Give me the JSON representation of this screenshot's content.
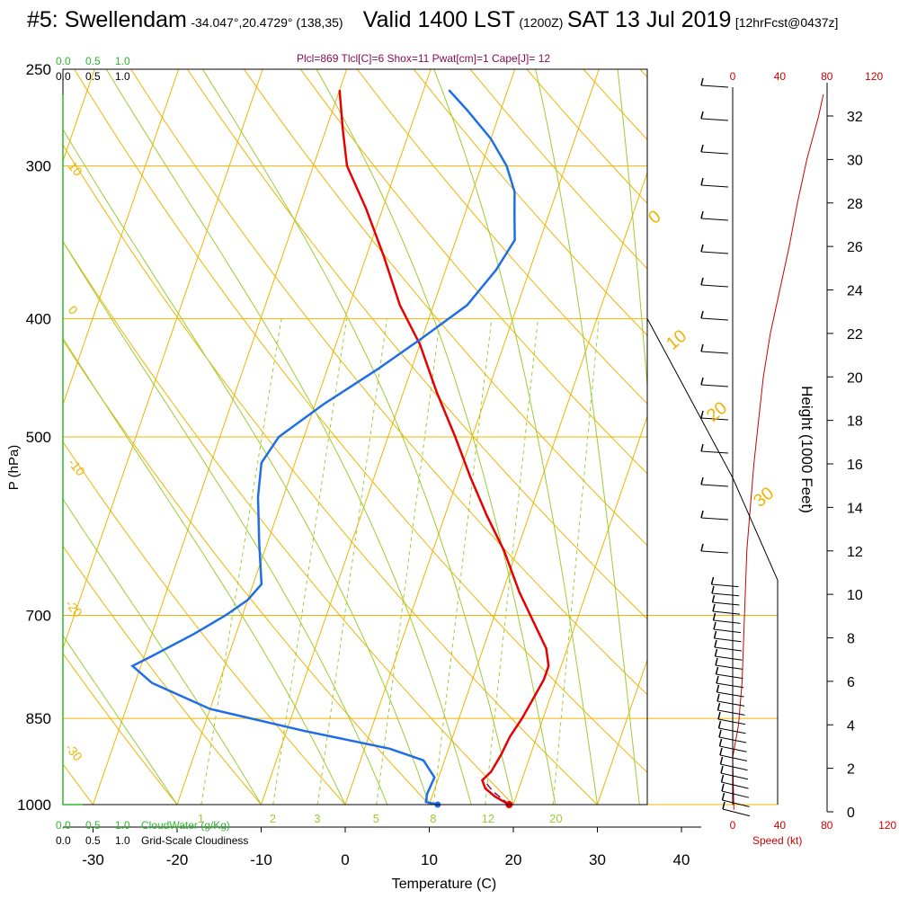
{
  "header": {
    "station": "#5: Swellendam",
    "coords": "-34.047°,20.4729° (138,35)",
    "valid": "Valid 1400 LST",
    "utc": "(1200Z)",
    "date": "SAT 13 Jul 2019",
    "fcst": "[12hrFcst@0437z]"
  },
  "diagnostics": "Plcl=869 Tlcl[C]=6 Shox=11 Pwat[cm]=1 Cape[J]= 12",
  "colors": {
    "isotherm": "#f0b400",
    "dry_adiabat": "#f0b400",
    "moist_adiabat": "#9acd32",
    "mixing_ratio": "#9acd32",
    "temperature": "#e60000",
    "dewpoint": "#1e6ee6",
    "cloud": "#2db82d",
    "speed_profile": "#cc0000"
  },
  "chart_data": {
    "type": "line",
    "title": "#5: Swellendam",
    "xlabel": "Temperature (C)",
    "ylabel": "P (hPa)",
    "y2label": "Height (1000 Feet)",
    "x_ticks": [
      -30,
      -20,
      -10,
      0,
      10,
      20,
      30,
      40
    ],
    "p_ticks": [
      250,
      300,
      400,
      500,
      700,
      850,
      1000
    ],
    "height_ticks": [
      0,
      2,
      4,
      6,
      8,
      10,
      12,
      14,
      16,
      18,
      20,
      22,
      24,
      26,
      28,
      30,
      32
    ],
    "speed_ticks": [
      0,
      40,
      80,
      120
    ],
    "speed_label": "Speed (kt)",
    "cloud_ticks": [
      "0.0",
      "0.5",
      "1.0"
    ],
    "cloud_labels": {
      "top_green": "0.0  0.5  1.0",
      "cloudwater": "CloudWater (g/Kg)",
      "cloudiness": "Grid-Scale Cloudiness"
    },
    "mixing_ratio_labels": [
      "1",
      "2",
      "3",
      "5",
      "8",
      "12",
      "20"
    ],
    "theta_labels_left": [
      "10",
      "0",
      "-10",
      "-20",
      "-30"
    ],
    "theta_labels_right": [
      "0",
      "10",
      "20",
      "30"
    ],
    "series": [
      {
        "name": "temperature",
        "points": [
          [
            19.5,
            1000
          ],
          [
            17.5,
            985
          ],
          [
            16,
            970
          ],
          [
            15.3,
            955
          ],
          [
            16,
            940
          ],
          [
            16.5,
            910
          ],
          [
            16.8,
            880
          ],
          [
            17.5,
            850
          ],
          [
            18,
            820
          ],
          [
            18.5,
            790
          ],
          [
            18.5,
            770
          ],
          [
            17.5,
            745
          ],
          [
            15,
            710
          ],
          [
            12,
            670
          ],
          [
            8.5,
            620
          ],
          [
            5,
            580
          ],
          [
            1.5,
            540
          ],
          [
            -2,
            500
          ],
          [
            -6,
            460
          ],
          [
            -10,
            420
          ],
          [
            -14,
            390
          ],
          [
            -18,
            355
          ],
          [
            -22,
            325
          ],
          [
            -26,
            300
          ],
          [
            -28,
            280
          ],
          [
            -30,
            260
          ]
        ]
      },
      {
        "name": "dewpoint",
        "points": [
          [
            11,
            1000
          ],
          [
            9.5,
            995
          ],
          [
            9.3,
            980
          ],
          [
            9.5,
            950
          ],
          [
            7.5,
            920
          ],
          [
            3,
            900
          ],
          [
            -8,
            870
          ],
          [
            -20,
            835
          ],
          [
            -28,
            795
          ],
          [
            -31,
            770
          ],
          [
            -29,
            755
          ],
          [
            -25,
            725
          ],
          [
            -22,
            700
          ],
          [
            -20,
            680
          ],
          [
            -19,
            660
          ],
          [
            -21,
            610
          ],
          [
            -23,
            560
          ],
          [
            -24,
            525
          ],
          [
            -23,
            500
          ],
          [
            -19,
            470
          ],
          [
            -14,
            440
          ],
          [
            -10,
            415
          ],
          [
            -6,
            390
          ],
          [
            -4,
            365
          ],
          [
            -3,
            345
          ],
          [
            -4,
            330
          ],
          [
            -5,
            315
          ],
          [
            -7,
            300
          ],
          [
            -10,
            285
          ],
          [
            -14,
            270
          ],
          [
            -17,
            260
          ]
        ]
      }
    ],
    "surface_temp": 19.5,
    "surface_dewpoint": 11,
    "speed_profile_kt": [
      [
        1,
        0.1
      ],
      [
        0,
        2.5
      ],
      [
        5,
        4
      ],
      [
        8,
        6
      ],
      [
        10,
        9
      ],
      [
        12,
        12
      ],
      [
        15,
        14
      ],
      [
        18,
        16
      ],
      [
        22,
        18
      ],
      [
        26,
        20
      ],
      [
        32,
        22
      ],
      [
        40,
        24
      ],
      [
        48,
        26
      ],
      [
        55,
        28
      ],
      [
        63,
        30
      ],
      [
        73,
        32
      ],
      [
        77,
        33
      ]
    ]
  }
}
